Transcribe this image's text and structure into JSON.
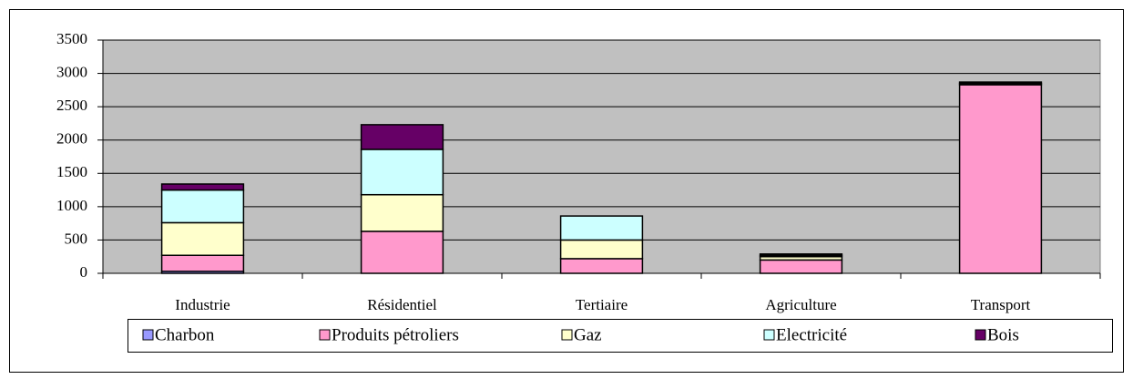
{
  "chart_data": {
    "type": "stacked_bar",
    "categories": [
      "Industrie",
      "Résidentiel",
      "Tertiaire",
      "Agriculture",
      "Transport"
    ],
    "series": [
      {
        "name": "Charbon",
        "color": "#9999ff",
        "values": [
          30,
          0,
          0,
          0,
          0
        ]
      },
      {
        "name": "Produits pétroliers",
        "color": "#ff99cc",
        "values": [
          240,
          630,
          220,
          200,
          2830
        ]
      },
      {
        "name": "Gaz",
        "color": "#ffffcc",
        "values": [
          490,
          550,
          280,
          50,
          0
        ]
      },
      {
        "name": "Electricité",
        "color": "#ccffff",
        "values": [
          490,
          680,
          360,
          20,
          20
        ]
      },
      {
        "name": "Bois",
        "color": "#660066",
        "values": [
          90,
          370,
          0,
          20,
          20
        ]
      }
    ],
    "ylim": [
      0,
      3500
    ],
    "yticks": [
      0,
      500,
      1000,
      1500,
      2000,
      2500,
      3000,
      3500
    ],
    "grid": true,
    "legend": "bottom",
    "plot_background": "#c0c0c0"
  }
}
